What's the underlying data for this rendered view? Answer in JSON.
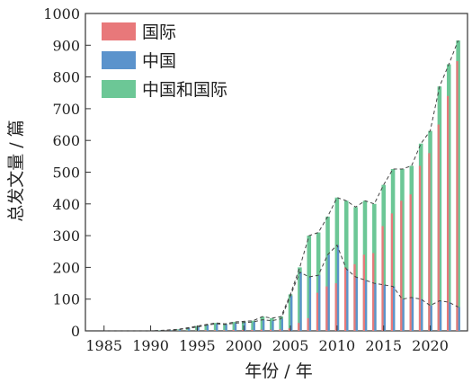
{
  "chart_data": {
    "type": "bar",
    "xlabel": "年份 / 年",
    "ylabel": "总发文量 / 篇",
    "ylim": [
      0,
      1000
    ],
    "yticks": [
      0,
      100,
      200,
      300,
      400,
      500,
      600,
      700,
      800,
      900,
      1000
    ],
    "xticks": [
      1985,
      1990,
      1995,
      2000,
      2005,
      2010,
      2015,
      2020
    ],
    "legend_position": "top-left",
    "x": [
      1985,
      1986,
      1987,
      1988,
      1989,
      1990,
      1991,
      1992,
      1993,
      1994,
      1995,
      1996,
      1997,
      1998,
      1999,
      2000,
      2001,
      2002,
      2003,
      2004,
      2005,
      2006,
      2007,
      2008,
      2009,
      2010,
      2011,
      2012,
      2013,
      2014,
      2015,
      2016,
      2017,
      2018,
      2019,
      2020,
      2021,
      2022,
      2023
    ],
    "series": [
      {
        "name": "国际",
        "color": "#e8787a",
        "values": [
          0,
          0,
          0,
          0,
          0,
          0,
          0,
          1,
          1,
          1,
          1,
          2,
          2,
          2,
          3,
          3,
          3,
          4,
          4,
          5,
          8,
          25,
          40,
          120,
          140,
          150,
          200,
          210,
          240,
          245,
          330,
          370,
          410,
          430,
          520,
          560,
          650,
          740,
          850
        ]
      },
      {
        "name": "中国",
        "color": "#5b93cc",
        "values": [
          0,
          0,
          0,
          0,
          0,
          0,
          1,
          2,
          4,
          8,
          12,
          18,
          22,
          20,
          24,
          26,
          28,
          35,
          32,
          38,
          110,
          185,
          170,
          175,
          240,
          270,
          195,
          170,
          160,
          150,
          145,
          140,
          100,
          105,
          100,
          80,
          95,
          90,
          75
        ]
      },
      {
        "name": "中国和国际",
        "color": "#6cc796",
        "values": [
          0,
          0,
          0,
          0,
          0,
          0,
          1,
          3,
          5,
          10,
          15,
          20,
          25,
          22,
          28,
          30,
          32,
          45,
          40,
          45,
          115,
          200,
          300,
          310,
          360,
          420,
          410,
          390,
          410,
          400,
          460,
          510,
          510,
          520,
          590,
          630,
          770,
          840,
          915
        ]
      }
    ]
  }
}
